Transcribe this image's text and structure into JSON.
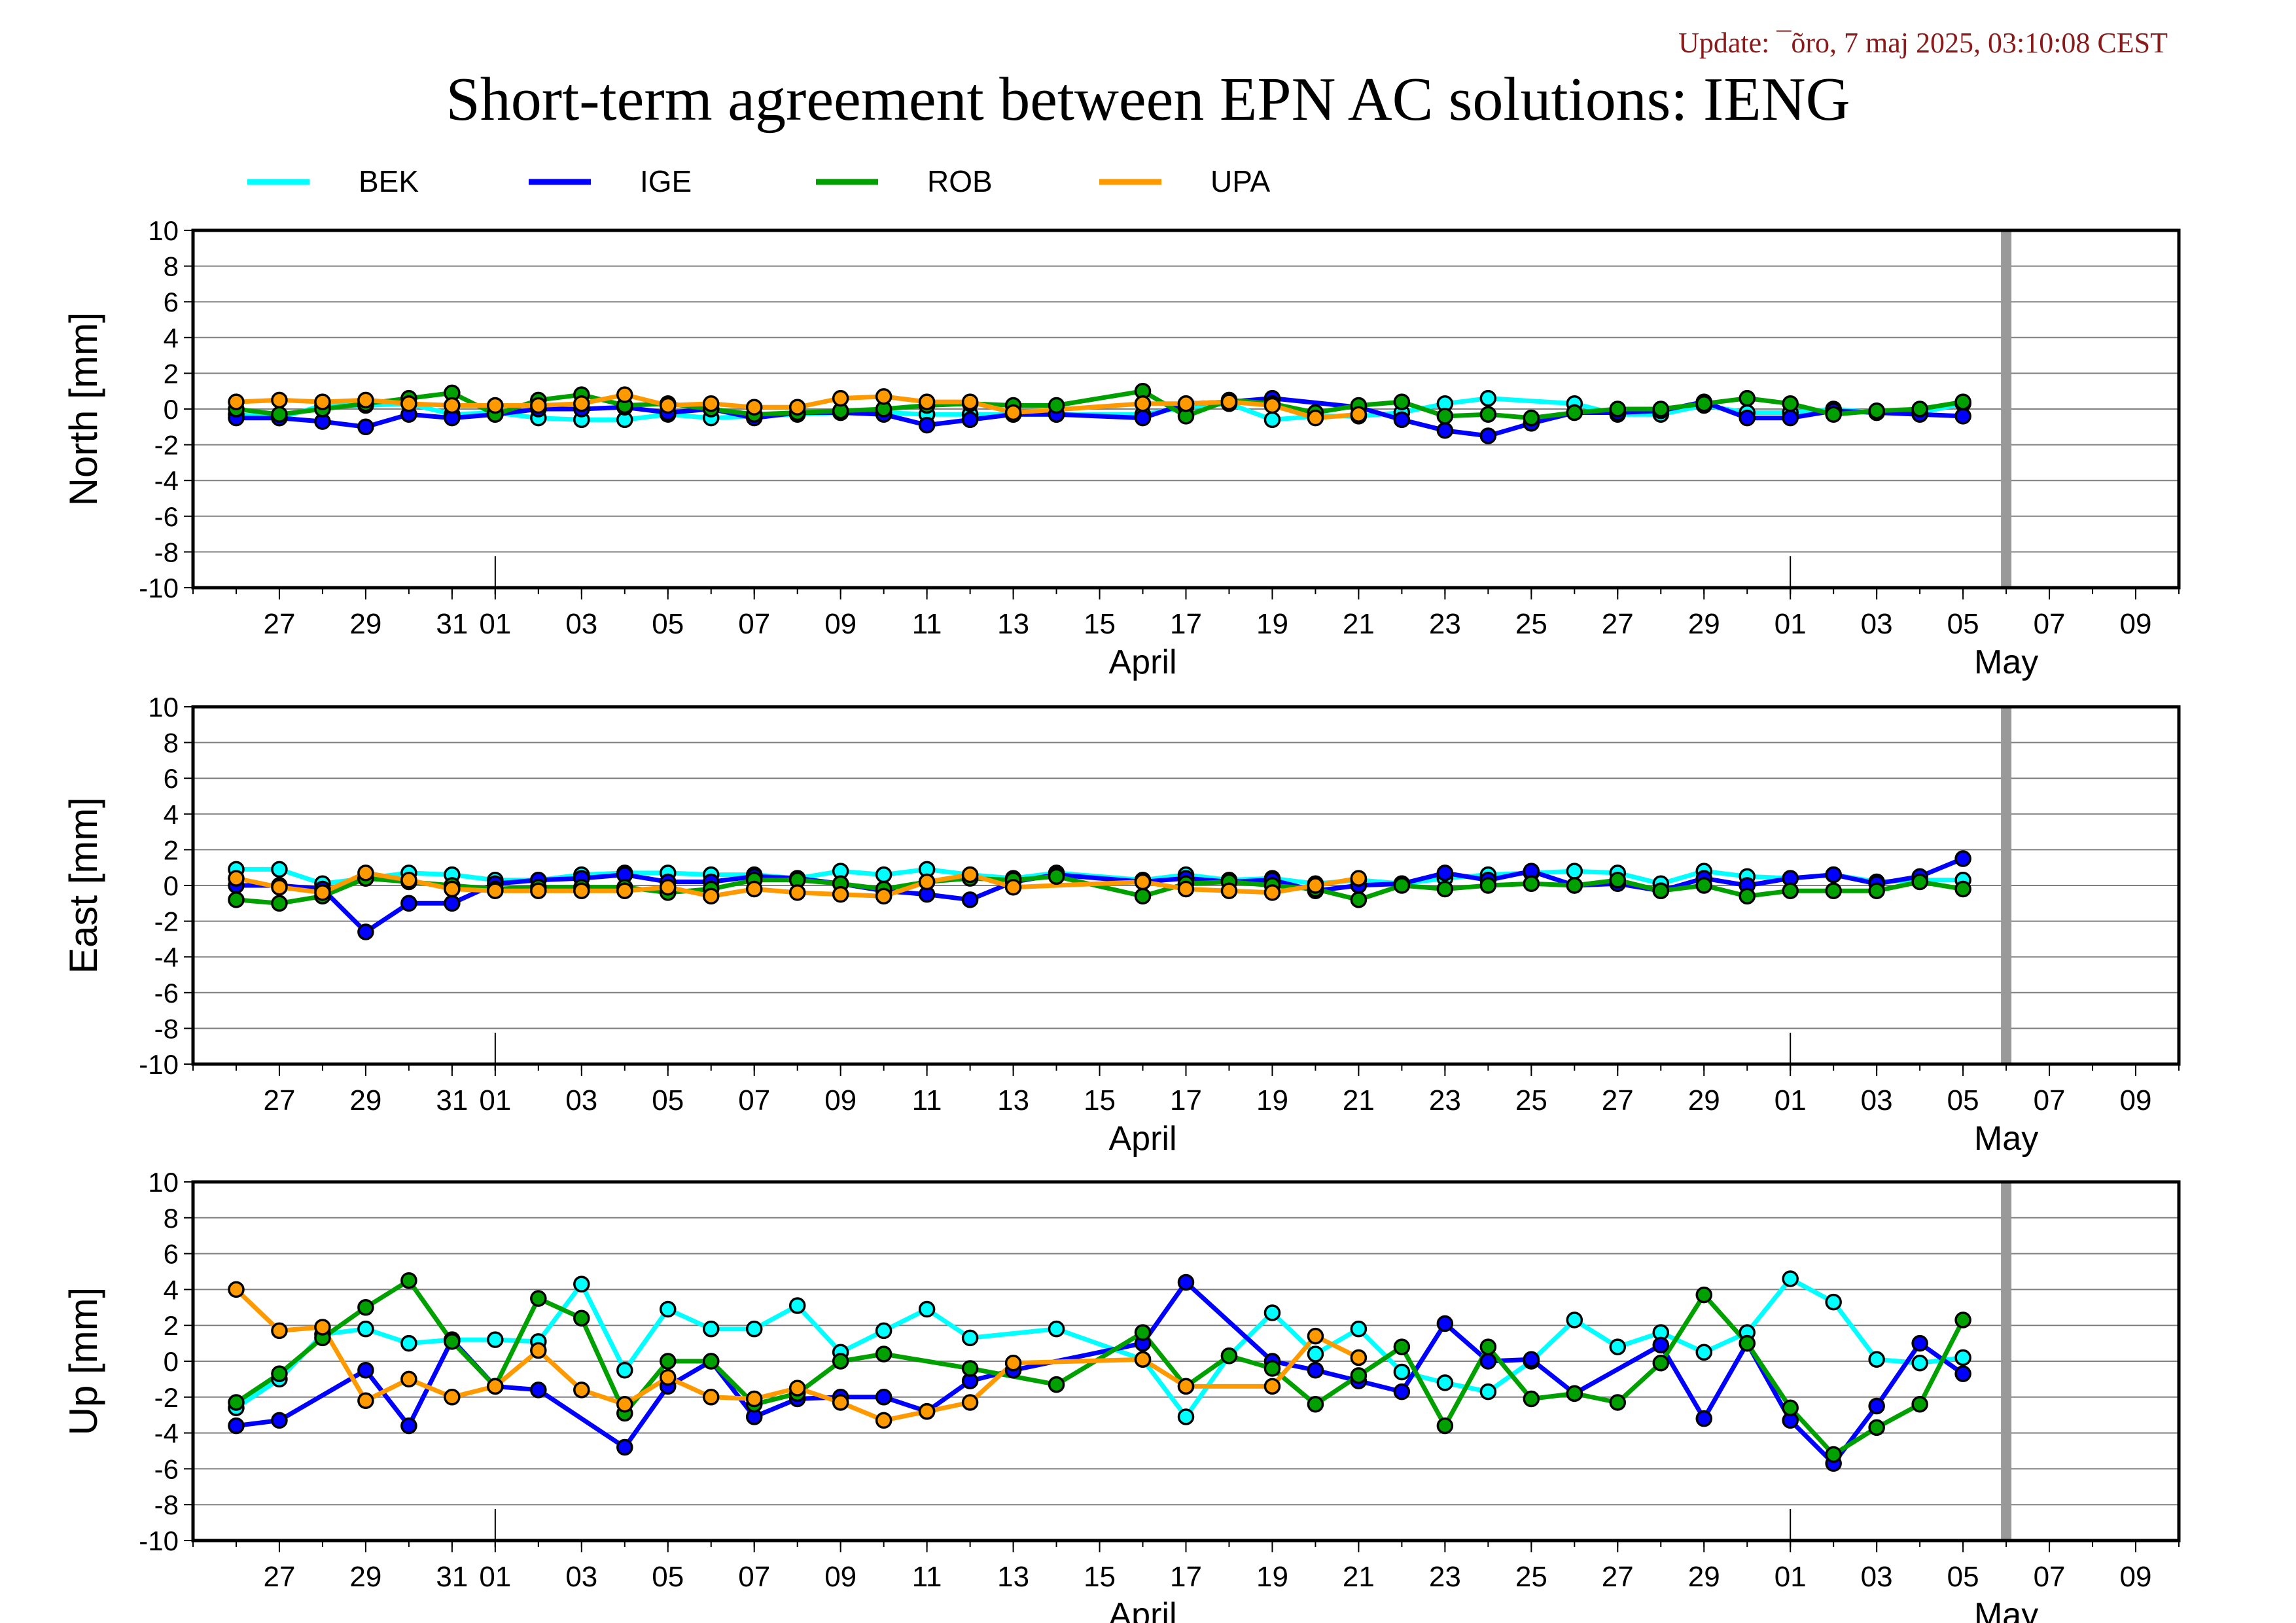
{
  "update_text": "Update: ¯õro, 7 maj 2025, 03:10:08 CEST",
  "title": "Short-term agreement between EPN AC solutions: IENG",
  "legend": [
    {
      "name": "BEK",
      "color": "#00ffff"
    },
    {
      "name": "IGE",
      "color": "#0000ff"
    },
    {
      "name": "ROB",
      "color": "#00a000"
    },
    {
      "name": "UPA",
      "color": "#ff9900"
    }
  ],
  "colors": {
    "BEK": "#00ffff",
    "IGE": "#0000ff",
    "ROB": "#00a000",
    "UPA": "#ff9900",
    "marker_edge": "#000000",
    "today_bar": "#999999",
    "grid": "#808080"
  },
  "x_axis": {
    "start": "2025-03-25",
    "end": "2025-05-10",
    "ticks": [
      {
        "date": "2025-03-27",
        "label": "27"
      },
      {
        "date": "2025-03-29",
        "label": "29"
      },
      {
        "date": "2025-03-31",
        "label": "31"
      },
      {
        "date": "2025-04-01",
        "label": "01"
      },
      {
        "date": "2025-04-03",
        "label": "03"
      },
      {
        "date": "2025-04-05",
        "label": "05"
      },
      {
        "date": "2025-04-07",
        "label": "07"
      },
      {
        "date": "2025-04-09",
        "label": "09"
      },
      {
        "date": "2025-04-11",
        "label": "11"
      },
      {
        "date": "2025-04-13",
        "label": "13"
      },
      {
        "date": "2025-04-15",
        "label": "15"
      },
      {
        "date": "2025-04-17",
        "label": "17"
      },
      {
        "date": "2025-04-19",
        "label": "19"
      },
      {
        "date": "2025-04-21",
        "label": "21"
      },
      {
        "date": "2025-04-23",
        "label": "23"
      },
      {
        "date": "2025-04-25",
        "label": "25"
      },
      {
        "date": "2025-04-27",
        "label": "27"
      },
      {
        "date": "2025-04-29",
        "label": "29"
      },
      {
        "date": "2025-05-01",
        "label": "01"
      },
      {
        "date": "2025-05-03",
        "label": "03"
      },
      {
        "date": "2025-05-05",
        "label": "05"
      },
      {
        "date": "2025-05-07",
        "label": "07"
      },
      {
        "date": "2025-05-09",
        "label": "09"
      }
    ],
    "months": [
      {
        "date": "2025-04-16",
        "label": "April"
      },
      {
        "date": "2025-05-06",
        "label": "May"
      }
    ],
    "month_starts": [
      "2025-04-01",
      "2025-05-01"
    ],
    "today_marker": "2025-05-06"
  },
  "chart_data": [
    {
      "type": "line",
      "ylabel": "North [mm]",
      "ylim": [
        -10,
        10
      ],
      "yticks": [
        -10,
        -8,
        -6,
        -4,
        -2,
        0,
        2,
        4,
        6,
        8,
        10
      ],
      "grid": true,
      "x": [
        "2025-03-26",
        "2025-03-27",
        "2025-03-28",
        "2025-03-29",
        "2025-03-30",
        "2025-03-31",
        "2025-04-01",
        "2025-04-02",
        "2025-04-03",
        "2025-04-04",
        "2025-04-05",
        "2025-04-06",
        "2025-04-07",
        "2025-04-08",
        "2025-04-09",
        "2025-04-10",
        "2025-04-11",
        "2025-04-12",
        "2025-04-13",
        "2025-04-14",
        "2025-04-16",
        "2025-04-17",
        "2025-04-18",
        "2025-04-19",
        "2025-04-20",
        "2025-04-21",
        "2025-04-22",
        "2025-04-23",
        "2025-04-24",
        "2025-04-25",
        "2025-04-26",
        "2025-04-27",
        "2025-04-28",
        "2025-04-29",
        "2025-04-30",
        "2025-05-01",
        "2025-05-02",
        "2025-05-03",
        "2025-05-04",
        "2025-05-05"
      ],
      "series": [
        {
          "name": "BEK",
          "values": [
            -0.3,
            -0.5,
            0.2,
            0.2,
            0.3,
            -0.3,
            -0.2,
            -0.5,
            -0.6,
            -0.6,
            -0.3,
            -0.5,
            -0.4,
            -0.3,
            -0.2,
            -0.2,
            -0.3,
            -0.3,
            -0.3,
            -0.3,
            -0.3,
            0.1,
            0.3,
            -0.6,
            -0.4,
            -0.4,
            -0.2,
            0.3,
            0.6,
            null,
            0.3,
            -0.3,
            -0.3,
            0.2,
            -0.2,
            -0.2,
            0.0,
            -0.2,
            -0.2,
            0.3
          ]
        },
        {
          "name": "IGE",
          "values": [
            -0.5,
            -0.5,
            -0.7,
            -1.0,
            -0.3,
            -0.5,
            -0.3,
            0.0,
            0.0,
            0.1,
            -0.2,
            0.0,
            -0.5,
            -0.2,
            -0.2,
            -0.3,
            -0.9,
            -0.6,
            -0.3,
            -0.3,
            -0.5,
            0.3,
            0.4,
            0.6,
            null,
            0.1,
            -0.6,
            -1.2,
            -1.5,
            -0.8,
            -0.2,
            -0.2,
            -0.1,
            0.4,
            -0.5,
            -0.5,
            -0.1,
            -0.2,
            -0.3,
            -0.4
          ]
        },
        {
          "name": "ROB",
          "values": [
            0.0,
            -0.3,
            0.0,
            0.3,
            0.6,
            0.9,
            -0.3,
            0.5,
            0.8,
            0.2,
            0.3,
            0.0,
            -0.3,
            -0.2,
            -0.1,
            0.0,
            0.2,
            0.3,
            0.2,
            0.2,
            1.0,
            -0.4,
            0.5,
            0.3,
            -0.2,
            0.2,
            0.4,
            -0.4,
            -0.3,
            -0.5,
            -0.2,
            0.0,
            0.0,
            0.3,
            0.6,
            0.3,
            -0.3,
            -0.1,
            0.0,
            0.4
          ]
        },
        {
          "name": "UPA",
          "values": [
            0.4,
            0.5,
            0.4,
            0.5,
            0.3,
            0.2,
            0.2,
            0.2,
            0.3,
            0.8,
            0.2,
            0.3,
            0.1,
            0.1,
            0.6,
            0.7,
            0.4,
            0.4,
            -0.2,
            null,
            0.3,
            0.3,
            0.4,
            0.2,
            -0.5,
            -0.3,
            null,
            null,
            null,
            null,
            null,
            null,
            null,
            null,
            null,
            null,
            null,
            null,
            null,
            null
          ]
        }
      ]
    },
    {
      "type": "line",
      "ylabel": "East [mm]",
      "ylim": [
        -10,
        10
      ],
      "yticks": [
        -10,
        -8,
        -6,
        -4,
        -2,
        0,
        2,
        4,
        6,
        8,
        10
      ],
      "grid": true,
      "x": [
        "2025-03-26",
        "2025-03-27",
        "2025-03-28",
        "2025-03-29",
        "2025-03-30",
        "2025-03-31",
        "2025-04-01",
        "2025-04-02",
        "2025-04-03",
        "2025-04-04",
        "2025-04-05",
        "2025-04-06",
        "2025-04-07",
        "2025-04-08",
        "2025-04-09",
        "2025-04-10",
        "2025-04-11",
        "2025-04-12",
        "2025-04-13",
        "2025-04-14",
        "2025-04-16",
        "2025-04-17",
        "2025-04-18",
        "2025-04-19",
        "2025-04-20",
        "2025-04-21",
        "2025-04-22",
        "2025-04-23",
        "2025-04-24",
        "2025-04-25",
        "2025-04-26",
        "2025-04-27",
        "2025-04-28",
        "2025-04-29",
        "2025-04-30",
        "2025-05-01",
        "2025-05-02",
        "2025-05-03",
        "2025-05-04",
        "2025-05-05"
      ],
      "series": [
        {
          "name": "BEK",
          "values": [
            0.9,
            0.9,
            0.1,
            0.4,
            0.7,
            0.6,
            0.3,
            0.3,
            0.6,
            0.7,
            0.7,
            0.6,
            0.6,
            0.4,
            0.8,
            0.6,
            0.9,
            0.6,
            0.4,
            0.7,
            0.3,
            0.6,
            0.3,
            0.4,
            0.1,
            0.3,
            0.1,
            0.4,
            0.6,
            0.7,
            0.8,
            0.7,
            0.1,
            0.8,
            0.5,
            0.4,
            0.6,
            0.2,
            0.3,
            0.3
          ]
        },
        {
          "name": "IGE",
          "values": [
            0.0,
            0.0,
            -0.2,
            -2.6,
            -1.0,
            -1.0,
            0.1,
            0.3,
            0.4,
            0.6,
            0.2,
            0.2,
            0.5,
            0.4,
            0.1,
            -0.3,
            -0.5,
            -0.8,
            0.2,
            0.6,
            0.2,
            0.4,
            0.2,
            0.3,
            -0.3,
            0.0,
            0.1,
            0.7,
            0.3,
            0.8,
            0.0,
            0.1,
            -0.3,
            0.4,
            0.0,
            0.4,
            0.6,
            0.1,
            0.5,
            1.5
          ]
        },
        {
          "name": "ROB",
          "values": [
            -0.8,
            -1.0,
            -0.6,
            0.4,
            0.2,
            0.0,
            -0.2,
            -0.1,
            -0.1,
            -0.1,
            -0.4,
            -0.2,
            0.3,
            0.3,
            0.1,
            -0.2,
            0.2,
            0.4,
            0.3,
            0.5,
            -0.6,
            0.1,
            0.2,
            0.0,
            -0.2,
            -0.8,
            0.0,
            -0.2,
            0.0,
            0.1,
            0.0,
            0.3,
            -0.3,
            0.0,
            -0.6,
            -0.3,
            -0.3,
            -0.3,
            0.2,
            -0.2
          ]
        },
        {
          "name": "UPA",
          "values": [
            0.4,
            -0.1,
            -0.4,
            0.7,
            0.3,
            -0.2,
            -0.3,
            -0.3,
            -0.3,
            -0.3,
            -0.1,
            -0.6,
            -0.2,
            -0.4,
            -0.5,
            -0.6,
            0.2,
            0.6,
            -0.1,
            null,
            0.2,
            -0.2,
            -0.3,
            -0.4,
            0.0,
            0.4,
            null,
            null,
            null,
            null,
            null,
            null,
            null,
            null,
            null,
            null,
            null,
            null,
            null,
            null
          ]
        }
      ]
    },
    {
      "type": "line",
      "ylabel": "Up [mm]",
      "ylim": [
        -10,
        10
      ],
      "yticks": [
        -10,
        -8,
        -6,
        -4,
        -2,
        0,
        2,
        4,
        6,
        8,
        10
      ],
      "grid": true,
      "x": [
        "2025-03-26",
        "2025-03-27",
        "2025-03-28",
        "2025-03-29",
        "2025-03-30",
        "2025-03-31",
        "2025-04-01",
        "2025-04-02",
        "2025-04-03",
        "2025-04-04",
        "2025-04-05",
        "2025-04-06",
        "2025-04-07",
        "2025-04-08",
        "2025-04-09",
        "2025-04-10",
        "2025-04-11",
        "2025-04-12",
        "2025-04-13",
        "2025-04-14",
        "2025-04-16",
        "2025-04-17",
        "2025-04-18",
        "2025-04-19",
        "2025-04-20",
        "2025-04-21",
        "2025-04-22",
        "2025-04-23",
        "2025-04-24",
        "2025-04-25",
        "2025-04-26",
        "2025-04-27",
        "2025-04-28",
        "2025-04-29",
        "2025-04-30",
        "2025-05-01",
        "2025-05-02",
        "2025-05-03",
        "2025-05-04",
        "2025-05-05"
      ],
      "series": [
        {
          "name": "BEK",
          "values": [
            -2.6,
            -1.0,
            1.5,
            1.8,
            1.0,
            1.2,
            1.2,
            1.1,
            4.3,
            -0.5,
            2.9,
            1.8,
            1.8,
            3.1,
            0.5,
            1.7,
            2.9,
            1.3,
            null,
            1.8,
            0.1,
            -3.1,
            0.3,
            2.7,
            0.4,
            1.8,
            -0.6,
            -1.2,
            -1.7,
            0.0,
            2.3,
            0.8,
            1.6,
            0.5,
            1.6,
            4.6,
            3.3,
            0.1,
            -0.1,
            0.2
          ]
        },
        {
          "name": "IGE",
          "values": [
            -3.6,
            -3.3,
            null,
            -0.5,
            -3.6,
            1.2,
            -1.4,
            -1.6,
            null,
            -4.8,
            -1.4,
            0.0,
            -3.1,
            -2.1,
            -2.0,
            -2.0,
            -2.8,
            -1.1,
            -0.5,
            null,
            1.0,
            4.4,
            null,
            0.0,
            -0.5,
            -1.1,
            -1.7,
            2.1,
            0.0,
            0.1,
            -1.8,
            null,
            0.9,
            -3.2,
            1.0,
            -3.3,
            -5.7,
            -2.5,
            1.0,
            -0.7
          ]
        },
        {
          "name": "ROB",
          "values": [
            -2.3,
            -0.7,
            1.3,
            3.0,
            4.5,
            1.1,
            -1.4,
            3.5,
            2.4,
            -2.9,
            0.0,
            0.0,
            -2.4,
            -1.8,
            0.0,
            0.4,
            null,
            -0.4,
            null,
            -1.3,
            1.6,
            -1.4,
            0.3,
            -0.4,
            -2.4,
            -0.8,
            0.8,
            -3.6,
            0.8,
            -2.1,
            -1.8,
            -2.3,
            -0.1,
            3.7,
            1.0,
            -2.6,
            -5.2,
            -3.7,
            -2.4,
            2.3
          ]
        },
        {
          "name": "UPA",
          "values": [
            4.0,
            1.7,
            1.9,
            -2.2,
            -1.0,
            -2.0,
            -1.4,
            0.6,
            -1.6,
            -2.4,
            -0.9,
            -2.0,
            -2.1,
            -1.5,
            -2.3,
            -3.3,
            -2.8,
            -2.3,
            -0.1,
            null,
            0.1,
            -1.4,
            null,
            -1.4,
            1.4,
            0.2,
            null,
            null,
            null,
            null,
            null,
            null,
            null,
            null,
            null,
            null,
            null,
            null,
            null,
            null
          ]
        }
      ]
    }
  ]
}
